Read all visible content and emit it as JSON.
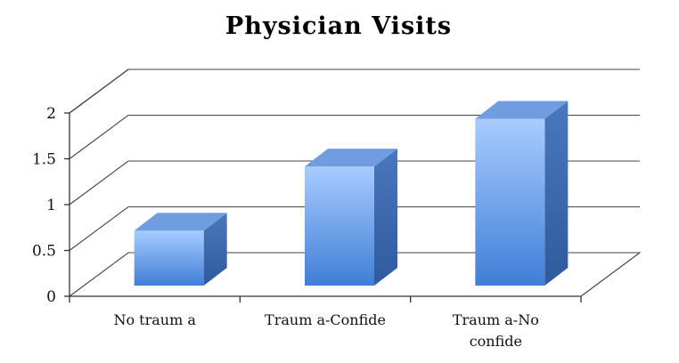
{
  "chart_data": {
    "type": "bar",
    "title": "Physician Visits",
    "categories": [
      "No trauma",
      "Trauma-Confide",
      "Trauma-No confide"
    ],
    "category_display": [
      [
        "No traum a"
      ],
      [
        "Traum a-Confide"
      ],
      [
        "Traum a-No",
        "confide"
      ]
    ],
    "values": [
      0.6,
      1.3,
      1.82
    ],
    "ylim": [
      0,
      2
    ],
    "yticks": [
      0,
      0.5,
      1,
      1.5,
      2
    ],
    "ytick_labels": [
      "0",
      "0.5",
      "1",
      "1.5",
      "2"
    ],
    "xlabel": "",
    "ylabel": "",
    "grid": true,
    "legend": "none",
    "style": "3d-column",
    "colors": {
      "bar_front_top": "#a8ccff",
      "bar_front_bottom": "#3f7ed6",
      "bar_side": "#2f5a9c",
      "bar_top": "#6f9de0"
    }
  }
}
